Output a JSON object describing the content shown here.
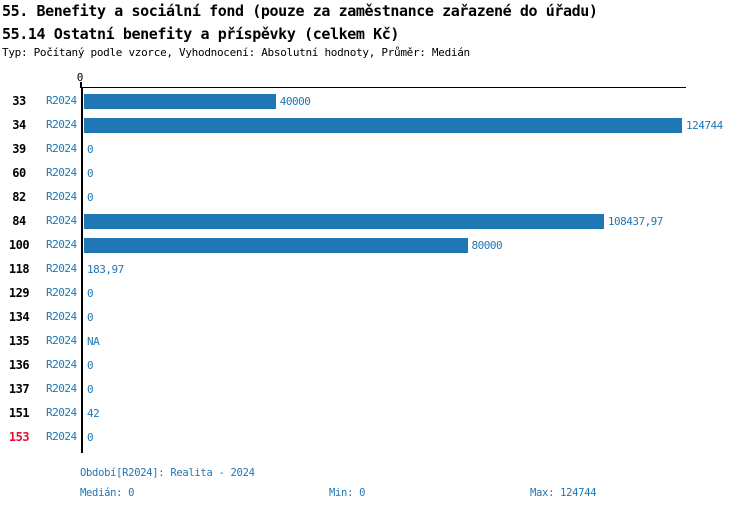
{
  "header": {
    "title_line1": "55. Benefity a sociální fond (pouze za zaměstnance zařazené do úřadu)",
    "title_line2": "55.14 Ostatní benefity a příspěvky (celkem Kč)",
    "subtitle": "Typ: Počítaný podle vzorce, Vyhodnocení: Absolutní hodnoty, Průměr: Medián"
  },
  "colors": {
    "bar": "#1f77b4",
    "blue_text": "#1f77b4",
    "highlight_row": "#e8112d",
    "axis": "#000000"
  },
  "chart_data": {
    "type": "bar",
    "orientation": "horizontal",
    "title": "55.14 Ostatní benefity a příspěvky (celkem Kč)",
    "series_name": "R2024",
    "axis_origin_tick_label": "0",
    "xlim": [
      0,
      124744
    ],
    "grid": false,
    "categories": [
      "33",
      "34",
      "39",
      "60",
      "82",
      "84",
      "100",
      "118",
      "129",
      "134",
      "135",
      "136",
      "137",
      "151",
      "153"
    ],
    "rows": [
      {
        "id": "33",
        "period": "R2024",
        "value": 40000,
        "label": "40000",
        "highlight": false
      },
      {
        "id": "34",
        "period": "R2024",
        "value": 124744,
        "label": "124744",
        "highlight": false
      },
      {
        "id": "39",
        "period": "R2024",
        "value": 0,
        "label": "0",
        "highlight": false
      },
      {
        "id": "60",
        "period": "R2024",
        "value": 0,
        "label": "0",
        "highlight": false
      },
      {
        "id": "82",
        "period": "R2024",
        "value": 0,
        "label": "0",
        "highlight": false
      },
      {
        "id": "84",
        "period": "R2024",
        "value": 108437.97,
        "label": "108437,97",
        "highlight": false
      },
      {
        "id": "100",
        "period": "R2024",
        "value": 80000,
        "label": "80000",
        "highlight": false
      },
      {
        "id": "118",
        "period": "R2024",
        "value": 183.97,
        "label": "183,97",
        "highlight": false
      },
      {
        "id": "129",
        "period": "R2024",
        "value": 0,
        "label": "0",
        "highlight": false
      },
      {
        "id": "134",
        "period": "R2024",
        "value": 0,
        "label": "0",
        "highlight": false
      },
      {
        "id": "135",
        "period": "R2024",
        "value": null,
        "label": "NA",
        "highlight": false
      },
      {
        "id": "136",
        "period": "R2024",
        "value": 0,
        "label": "0",
        "highlight": false
      },
      {
        "id": "137",
        "period": "R2024",
        "value": 0,
        "label": "0",
        "highlight": false
      },
      {
        "id": "151",
        "period": "R2024",
        "value": 42,
        "label": "42",
        "highlight": false
      },
      {
        "id": "153",
        "period": "R2024",
        "value": 0,
        "label": "0",
        "highlight": true
      }
    ],
    "max_value": 124744
  },
  "footer": {
    "period_line": "Období[R2024]: Realita - 2024",
    "median": "Medián: 0",
    "min": "Min: 0",
    "max": "Max: 124744"
  }
}
